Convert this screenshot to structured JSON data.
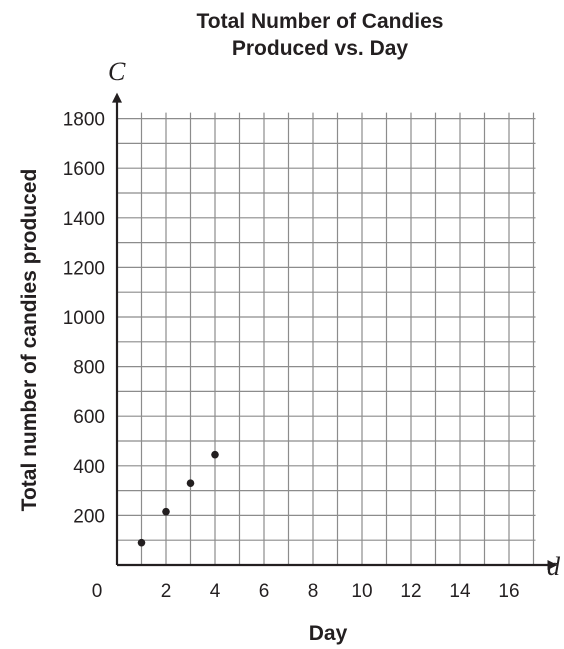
{
  "chart_data": {
    "type": "scatter",
    "title_lines": [
      "Total Number of Candies",
      "Produced vs. Day"
    ],
    "xlabel": "Day",
    "ylabel": "Total number of candies produced",
    "x_variable": "d",
    "y_variable": "C",
    "xlim": [
      0,
      17
    ],
    "ylim": [
      0,
      1800
    ],
    "x_ticks": [
      "0",
      "2",
      "4",
      "6",
      "8",
      "10",
      "12",
      "14",
      "16"
    ],
    "y_ticks": [
      "200",
      "400",
      "600",
      "800",
      "1000",
      "1200",
      "1400",
      "1600",
      "1800"
    ],
    "grid": true,
    "points": [
      {
        "x": 1,
        "y": 90
      },
      {
        "x": 2,
        "y": 215
      },
      {
        "x": 3,
        "y": 330
      },
      {
        "x": 4,
        "y": 445
      }
    ],
    "colors": {
      "ink": "#231f20",
      "grid": "#8c8c8c"
    }
  }
}
